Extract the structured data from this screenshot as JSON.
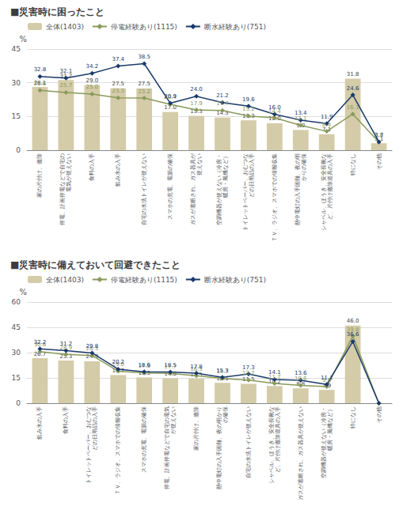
{
  "chart_data": [
    {
      "type": "bar",
      "title": "■災害時に困ったこと",
      "categories": [
        "家の片付け、撤除",
        "停電、計画停電などで自宅の\n電気が使えない",
        "食料の入手",
        "飲み水の入手",
        "自宅の水洗トイレが使えない",
        "スマホの充電、電源の確保",
        "ガスが遮断され、ガス器具が\n使えない",
        "空調機器が使えない（冷房・\n暖房・風機など）",
        "トイレットペーパー、おむつな\nどの日用品の入手",
        "ＴＶ、ラジオ、スマホでの情報収集",
        "懸中電灯の入手困難、夜の明\nかりの確保",
        "シャベル、ほうき、安全長靴な\nど、片付け撤除道具の入手",
        "特になし",
        "その他"
      ],
      "series": [
        {
          "name": "全体(1403)",
          "type": "bar",
          "color": "#d4cba8",
          "values": [
            28.1,
            31.2,
            29.0,
            27.5,
            27.5,
            17.0,
            15.3,
            14.5,
            13.3,
            12.0,
            9.0,
            7.1,
            31.8,
            3.1
          ],
          "value_labels": [
            "28.1",
            "31.2",
            "29.0",
            "27.5",
            "27.5",
            "17.0",
            "15.3",
            "14.5",
            "13.3",
            "12.0",
            "9.0",
            "7.1",
            "31.8",
            "3.1"
          ]
        },
        {
          "name": "停電経験あり(1115)",
          "type": "line",
          "color": "#8a9a5b",
          "marker": "diamond",
          "values": [
            26.6,
            25.7,
            25.0,
            23.3,
            23.2,
            20.4,
            17.9,
            17.7,
            15.2,
            14.4,
            11.1,
            8.4,
            16.1,
            3.6
          ],
          "value_labels": [
            "26.6",
            "25.7",
            "25.0",
            "23.3",
            "23.2",
            "20.4",
            "17.9",
            "17.7",
            "15.2",
            "14.4",
            "11.1",
            "8.4",
            "16.1",
            "3.6"
          ]
        },
        {
          "name": "断水経験あり(751)",
          "type": "line",
          "color": "#1a3a6b",
          "marker": "diamond",
          "values": [
            32.8,
            32.1,
            34.2,
            37.4,
            38.5,
            20.9,
            24.0,
            21.2,
            19.6,
            16.0,
            13.4,
            11.9,
            24.6,
            3.7
          ],
          "value_labels": [
            "32.8",
            "32.1",
            "34.2",
            "37.4",
            "38.5",
            "20.9",
            "24.0",
            "21.2",
            "19.6",
            "16.0",
            "13.4",
            "11.9",
            "24.6",
            "3.7"
          ]
        }
      ],
      "ylabel": "%",
      "ylim": [
        0,
        45
      ],
      "yticks": [
        0,
        15,
        30,
        45
      ],
      "grid": true,
      "legend": "upper left",
      "data_labels": true
    },
    {
      "type": "bar",
      "title": "■災害時に備えておいて回避できたこと",
      "categories": [
        "飲み水の入手",
        "食料の入手",
        "トイレットペーパー、おむつな\nどの日用品の入手",
        "ＴＶ、ラジオ、スマホでの情報収集",
        "スマホの充電、電源の確保",
        "停電、計画停電などで自宅の電気\nが使えない",
        "家の片付け、撤除",
        "懸中電灯の入手困難、夜の明かり\nの確保",
        "自宅の水洗トイレが使えない",
        "シャベル、ほうき、安全長靴な\nど、片付け撤除道具の入手",
        "ガスが遮断され、ガス器具が使えない",
        "空調機器が使えない（冷房・\n暖房・風機など）",
        "特になし",
        "その他"
      ],
      "series": [
        {
          "name": "全体(1403)",
          "type": "bar",
          "color": "#d4cba8",
          "values": [
            26.7,
            25.3,
            24.9,
            16.7,
            15.3,
            14.8,
            14.5,
            12.1,
            11.5,
            10.2,
            8.8,
            7.9,
            46.0,
            0.0
          ],
          "value_labels": [
            "26.7",
            "25.3",
            "24.9",
            "16.7",
            "15.3",
            "14.8",
            "14.5",
            "12.1",
            "11.5",
            "10.2",
            "8.8",
            "7.9",
            "46.0",
            null
          ]
        },
        {
          "name": "停電経験あり(1115)",
          "type": "line",
          "color": "#8a9a5b",
          "marker": "diamond",
          "values": [
            30.6,
            28.9,
            28.3,
            19.0,
            17.9,
            17.7,
            16.3,
            14.7,
            13.7,
            11.7,
            10.6,
            9.8,
            39.8,
            0.0
          ],
          "value_labels": [
            "30.6",
            "28.9",
            "28.3",
            "19.0",
            "17.9",
            "17.7",
            "16.3",
            "14.7",
            "13.7",
            "11.7",
            "10.6",
            "9.8",
            "39.8",
            null
          ]
        },
        {
          "name": "断水経験あり(751)",
          "type": "line",
          "color": "#1a3a6b",
          "marker": "diamond",
          "values": [
            32.2,
            31.2,
            29.8,
            20.2,
            18.6,
            18.5,
            17.8,
            15.3,
            17.3,
            14.1,
            13.6,
            11.1,
            36.6,
            0.0
          ],
          "value_labels": [
            "32.2",
            "31.2",
            "29.8",
            "20.2",
            "18.6",
            "18.5",
            "17.8",
            "15.3",
            "17.3",
            "14.1",
            "13.6",
            "11.1",
            "36.6",
            null
          ]
        }
      ],
      "ylabel": "%",
      "ylim": [
        0,
        60
      ],
      "yticks": [
        0,
        15,
        30,
        45,
        60
      ],
      "grid": true,
      "legend": "upper left",
      "data_labels": true
    }
  ]
}
